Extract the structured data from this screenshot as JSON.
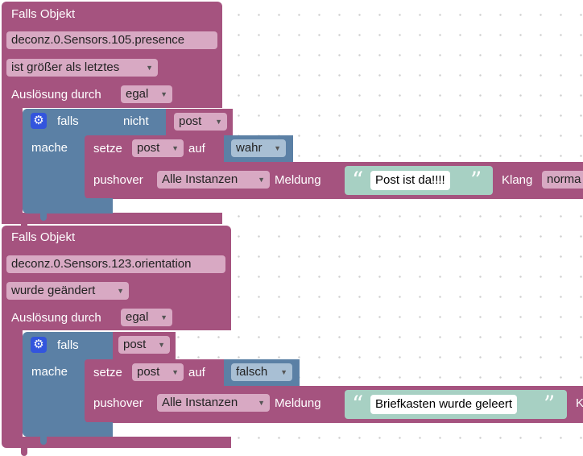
{
  "block1": {
    "title": "Falls Objekt",
    "object_id": "deconz.0.Sensors.105.presence",
    "condition": "ist größer als letztes",
    "trigger_label": "Auslösung durch",
    "trigger_value": "egal",
    "if_block": {
      "falls_label": "falls",
      "mache_label": "mache",
      "not_label": "nicht",
      "variable": "post",
      "set": {
        "label": "setze",
        "variable": "post",
        "auf": "auf",
        "value": "wahr"
      },
      "pushover": {
        "label": "pushover",
        "instance": "Alle Instanzen",
        "message_label": "Meldung",
        "message": "Post ist da!!!!",
        "sound_label": "Klang",
        "sound_value": "norma"
      }
    }
  },
  "block2": {
    "title": "Falls Objekt",
    "object_id": "deconz.0.Sensors.123.orientation",
    "condition": "wurde geändert",
    "trigger_label": "Auslösung durch",
    "trigger_value": "egal",
    "if_block": {
      "falls_label": "falls",
      "mache_label": "mache",
      "variable": "post",
      "set": {
        "label": "setze",
        "variable": "post",
        "auf": "auf",
        "value": "falsch"
      },
      "pushover": {
        "label": "pushover",
        "instance": "Alle Instanzen",
        "message_label": "Meldung",
        "message": "Briefkasten wurde geleert",
        "sound_label": "K"
      }
    }
  },
  "colors": {
    "event_block": "#a5537f",
    "logic_block": "#5b80a5",
    "text_block": "#a7d0c3",
    "gear": "#3355dd"
  },
  "icons": {
    "gear": "gear-icon",
    "quote_open": "quote-open-icon",
    "quote_close": "quote-close-icon",
    "dropdown": "dropdown-arrow-icon"
  }
}
